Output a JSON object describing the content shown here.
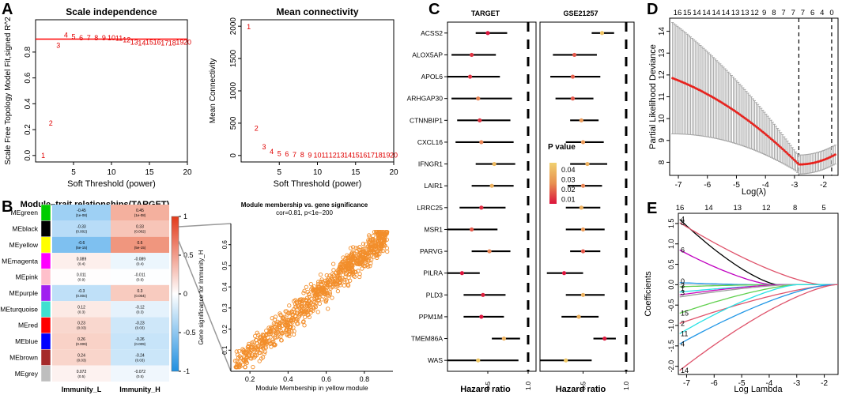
{
  "panel_labels": {
    "A": "A",
    "B": "B",
    "C": "C",
    "D": "D",
    "E": "E"
  },
  "chart_data": [
    {
      "id": "A1",
      "type": "scatter",
      "title": "Scale independence",
      "xlabel": "Soft Threshold (power)",
      "ylabel": "Scale Free Topology Model Fit,signed R^2",
      "xlim": [
        0,
        20
      ],
      "ylim": [
        -0.05,
        1.05
      ],
      "xticks": [
        "5",
        "10",
        "15",
        "20"
      ],
      "yticks": [
        "0.0",
        "0.2",
        "0.4",
        "0.6",
        "0.8"
      ],
      "hline": 0.9,
      "x": [
        1,
        2,
        3,
        4,
        5,
        6,
        7,
        8,
        9,
        10,
        11,
        12,
        13,
        14,
        15,
        16,
        17,
        18,
        19,
        20
      ],
      "y": [
        0.0,
        0.25,
        0.85,
        0.93,
        0.92,
        0.91,
        0.91,
        0.91,
        0.91,
        0.91,
        0.905,
        0.895,
        0.875,
        0.87,
        0.875,
        0.875,
        0.87,
        0.87,
        0.875,
        0.875
      ],
      "labels": [
        "1",
        "2",
        "3",
        "4",
        "5",
        "6",
        "7",
        "8",
        "9",
        "10",
        "11",
        "12",
        "13",
        "14",
        "15",
        "16",
        "17",
        "18",
        "19",
        "20"
      ]
    },
    {
      "id": "A2",
      "type": "scatter",
      "title": "Mean connectivity",
      "xlabel": "Soft Threshold (power)",
      "ylabel": "Mean Connectivity",
      "xlim": [
        0,
        20
      ],
      "ylim": [
        -100,
        2100
      ],
      "xticks": [
        "5",
        "10",
        "15",
        "20"
      ],
      "yticks": [
        "0",
        "500",
        "1000",
        "1500",
        "2000"
      ],
      "x": [
        1,
        2,
        3,
        4,
        5,
        6,
        7,
        8,
        9,
        10,
        11,
        12,
        13,
        14,
        15,
        16,
        17,
        18,
        19,
        20
      ],
      "y": [
        1990,
        420,
        130,
        60,
        30,
        20,
        12,
        8,
        5,
        4,
        3,
        2,
        2,
        1,
        1,
        1,
        1,
        1,
        1,
        1
      ],
      "labels": [
        "1",
        "2",
        "3",
        "4",
        "5",
        "6",
        "7",
        "8",
        "9",
        "10",
        "11",
        "12",
        "13",
        "14",
        "15",
        "16",
        "17",
        "18",
        "19",
        "20"
      ]
    },
    {
      "id": "B1",
      "type": "heatmap",
      "title": "Module–trait relationships(TARGET)",
      "rows": [
        "MEgreen",
        "MEblack",
        "MEyellow",
        "MEmagenta",
        "MEpink",
        "MEpurple",
        "MEturquoise",
        "MEred",
        "MEblue",
        "MEbrown",
        "MEgrey"
      ],
      "row_colors": [
        "#00cc00",
        "#000000",
        "#ffff00",
        "#ff00ff",
        "#ffc0cb",
        "#a020f0",
        "#40e0d0",
        "#ff0000",
        "#0000ff",
        "#a52a2a",
        "#bebebe"
      ],
      "columns": [
        "Immunity_L",
        "Immunity_H"
      ],
      "values": [
        [
          -0.45,
          0.45
        ],
        [
          -0.33,
          0.33
        ],
        [
          -0.6,
          0.6
        ],
        [
          0.089,
          -0.089
        ],
        [
          0.011,
          -0.011
        ],
        [
          -0.3,
          0.3
        ],
        [
          0.12,
          -0.12
        ],
        [
          0.23,
          -0.23
        ],
        [
          0.26,
          -0.26
        ],
        [
          0.24,
          -0.24
        ],
        [
          0.072,
          -0.072
        ]
      ],
      "pvalues": [
        [
          "(1e-08)",
          "(1e-08)"
        ],
        [
          "(0.002)",
          "(0.002)"
        ],
        [
          "(5e-15)",
          "(5e-15)"
        ],
        [
          "(0.4)",
          "(0.4)"
        ],
        [
          "(0.9)",
          "(0.9)"
        ],
        [
          "(0.004)",
          "(0.004)"
        ],
        [
          "(0.3)",
          "(0.3)"
        ],
        [
          "(0.03)",
          "(0.03)"
        ],
        [
          "(0.009)",
          "(0.009)"
        ],
        [
          "(0.03)",
          "(0.03)"
        ],
        [
          "(0.5)",
          "(0.5)"
        ]
      ],
      "colorbar_ticks": [
        "1",
        "0.5",
        "0",
        "-0.5",
        "-1"
      ]
    },
    {
      "id": "B2",
      "type": "scatter",
      "title": "Module membership vs. gene significance",
      "subtitle": "cor=0.81, p<1e−200",
      "xlabel": "Module Membership in yellow module",
      "ylabel": "Gene significance for Immunity_H",
      "xlim": [
        0.1,
        0.95
      ],
      "ylim": [
        0.0,
        0.7
      ],
      "xticks": [
        "0.2",
        "0.4",
        "0.6",
        "0.8"
      ],
      "yticks": [
        "0.1",
        "0.2",
        "0.3",
        "0.4",
        "0.5",
        "0.6"
      ],
      "point_color": "#f28e2b",
      "n_points": 900,
      "trend": {
        "slope": 0.78,
        "intercept": -0.07,
        "spread": 0.06
      }
    },
    {
      "id": "C",
      "type": "forest",
      "xlabel": "Hazard ratio",
      "xticks": [
        "0.5",
        "1.0"
      ],
      "cohorts": [
        "TARGET",
        "GSE21257"
      ],
      "genes": [
        "ACSS2",
        "ALOX5AP",
        "APOL6",
        "ARHGAP30",
        "CTNNBIP1",
        "CXCL16",
        "IFNGR1",
        "LAIR1",
        "LRRC25",
        "MSR1",
        "PARVG",
        "PILRA",
        "PLD3",
        "PPM1M",
        "TMEM86A",
        "WAS"
      ],
      "target": [
        [
          0.5,
          0.35,
          0.74,
          0.005
        ],
        [
          0.3,
          0.05,
          0.6,
          0.012
        ],
        [
          0.28,
          0.0,
          0.65,
          0.012
        ],
        [
          0.38,
          0.05,
          0.8,
          0.03
        ],
        [
          0.4,
          0.12,
          0.78,
          0.012
        ],
        [
          0.42,
          0.1,
          0.82,
          0.03
        ],
        [
          0.58,
          0.35,
          0.84,
          0.042
        ],
        [
          0.55,
          0.3,
          0.82,
          0.04
        ],
        [
          0.42,
          0.15,
          0.72,
          0.01
        ],
        [
          0.3,
          0.0,
          0.62,
          0.02
        ],
        [
          0.52,
          0.3,
          0.78,
          0.03
        ],
        [
          0.18,
          0.0,
          0.4,
          0.005
        ],
        [
          0.44,
          0.2,
          0.72,
          0.008
        ],
        [
          0.42,
          0.2,
          0.7,
          0.004
        ],
        [
          0.7,
          0.55,
          0.9,
          0.04
        ],
        [
          0.38,
          0.0,
          0.88,
          0.045
        ]
      ],
      "gse21257": [
        [
          0.72,
          0.6,
          0.86,
          0.044
        ],
        [
          0.4,
          0.15,
          0.66,
          0.02
        ],
        [
          0.38,
          0.12,
          0.7,
          0.022
        ],
        [
          0.38,
          0.18,
          0.62,
          0.02
        ],
        [
          0.48,
          0.35,
          0.68,
          0.035
        ],
        [
          0.5,
          0.3,
          0.74,
          0.035
        ],
        [
          0.55,
          0.35,
          0.78,
          0.04
        ],
        [
          0.5,
          0.32,
          0.72,
          0.03
        ],
        [
          0.48,
          0.3,
          0.7,
          0.04
        ],
        [
          0.5,
          0.3,
          0.75,
          0.035
        ],
        [
          0.5,
          0.35,
          0.7,
          0.02
        ],
        [
          0.28,
          0.08,
          0.5,
          0.005
        ],
        [
          0.5,
          0.3,
          0.75,
          0.04
        ],
        [
          0.45,
          0.25,
          0.68,
          0.04
        ],
        [
          0.75,
          0.62,
          0.88,
          0.006
        ],
        [
          0.3,
          0.0,
          0.6,
          0.045
        ]
      ],
      "legend": {
        "title": "P value",
        "ticks": [
          "0.04",
          "0.03",
          "0.02",
          "0.01"
        ]
      }
    },
    {
      "id": "D",
      "type": "line",
      "xlabel": "Log(λ)",
      "ylabel": "Partial Likelihood Deviance",
      "xlim": [
        -7.3,
        -1.5
      ],
      "ylim": [
        7.4,
        14.6
      ],
      "xticks": [
        "-7",
        "-6",
        "-5",
        "-4",
        "-3",
        "-2"
      ],
      "yticks": [
        "8",
        "9",
        "10",
        "11",
        "12",
        "13",
        "14"
      ],
      "top_ticks": [
        "16",
        "15",
        "14",
        "14",
        "14",
        "14",
        "13",
        "13",
        "12",
        "9",
        "8",
        "7",
        "7",
        "7",
        "6",
        "4",
        "0"
      ],
      "vlines": [
        -2.85,
        -1.72
      ],
      "series": [
        {
          "name": "deviance",
          "color": "#e8211c",
          "ci_color": "#a6a6a6",
          "n": 100
        }
      ]
    },
    {
      "id": "E",
      "type": "line",
      "xlabel": "Log Lambda",
      "ylabel": "Coefficients",
      "xlim": [
        -7.3,
        -1.5
      ],
      "ylim": [
        -2.2,
        1.75
      ],
      "xticks": [
        "-7",
        "-6",
        "-5",
        "-4",
        "-3",
        "-2"
      ],
      "yticks": [
        "1.5",
        "1.0",
        "0.5",
        "0.0",
        "-0.5",
        "-1.0",
        "-1.5",
        "-2.0"
      ],
      "top_ticks": [
        "16",
        "14",
        "13",
        "12",
        "8",
        "5"
      ],
      "left_labels": [
        "4",
        "8",
        "6",
        "0",
        "3",
        "1",
        "3",
        "15",
        "2",
        "11",
        "4",
        "14"
      ],
      "series": [
        {
          "name": "p1",
          "color": "#000000",
          "start": 1.6,
          "end_x": -3.7
        },
        {
          "name": "p2",
          "color": "#df536b",
          "start": 1.52,
          "end_x": -2.1
        },
        {
          "name": "p3",
          "color": "#c000c0",
          "start": 0.85,
          "end_x": -3.9
        },
        {
          "name": "p4",
          "color": "#2297e6",
          "start": 0.05,
          "end_x": -4.5
        },
        {
          "name": "p5",
          "color": "#61d04f",
          "start": -0.05,
          "end_x": -4.0
        },
        {
          "name": "p6",
          "color": "#28e2e5",
          "start": -0.18,
          "end_x": -3.3
        },
        {
          "name": "p7",
          "color": "#cd0bbc",
          "start": -0.25,
          "end_x": -3.6
        },
        {
          "name": "p8",
          "color": "#9e9e9e",
          "start": -0.3,
          "end_x": -3.2
        },
        {
          "name": "p9",
          "color": "#61d04f",
          "start": -0.7,
          "end_x": -3.0
        },
        {
          "name": "p10",
          "color": "#df536b",
          "start": -0.95,
          "end_x": -1.6
        },
        {
          "name": "p11",
          "color": "#28e2e5",
          "start": -1.2,
          "end_x": -3.0
        },
        {
          "name": "p12",
          "color": "#2297e6",
          "start": -1.45,
          "end_x": -1.8
        },
        {
          "name": "p13",
          "color": "#df536b",
          "start": -2.1,
          "end_x": -1.6
        }
      ]
    }
  ]
}
